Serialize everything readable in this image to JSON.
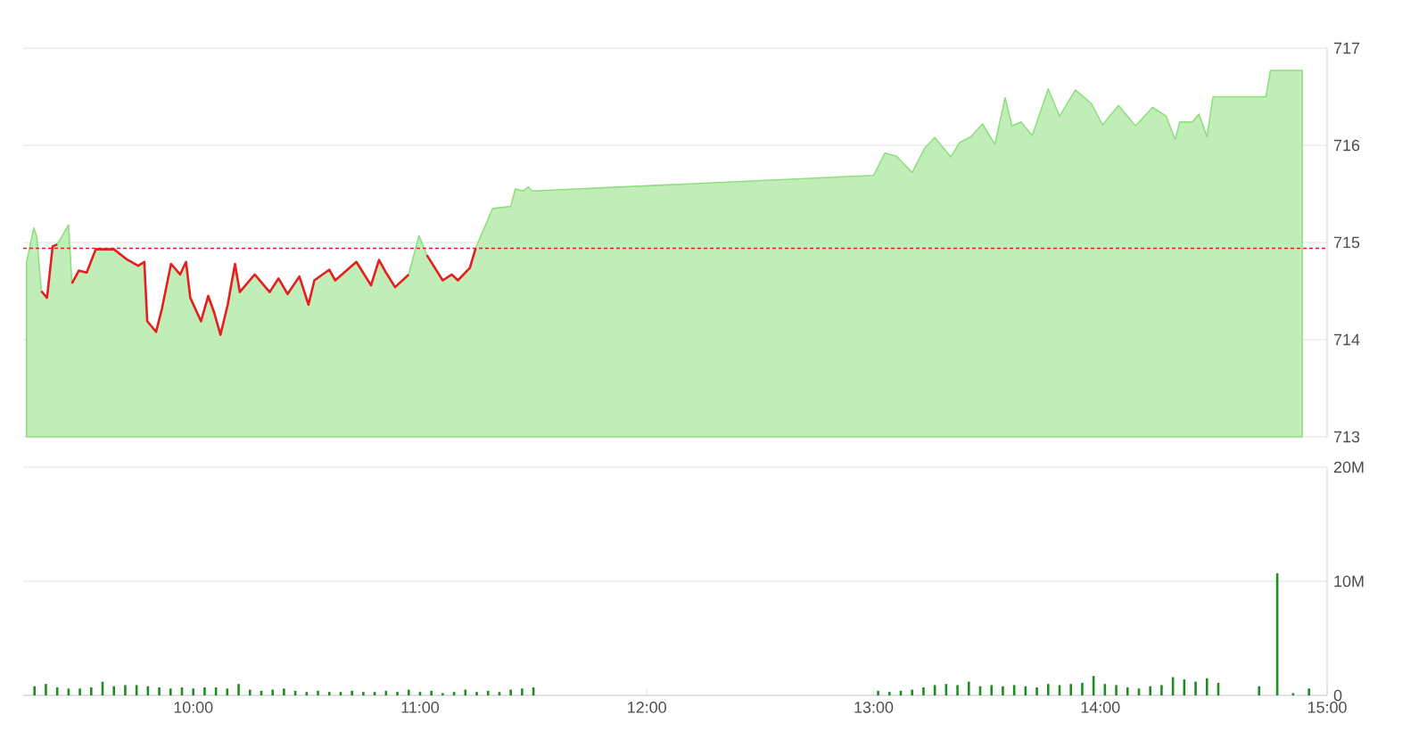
{
  "chart_data": [
    {
      "type": "area",
      "xlim": [
        9.25,
        15.0
      ],
      "ylim": [
        713,
        717
      ],
      "yticks": [
        713,
        714,
        715,
        716,
        717
      ],
      "grid": "y",
      "tick_labels": "y",
      "ref_lines": [
        {
          "axis": "y",
          "value": 714.94,
          "color": "#e02020",
          "line_style": "dashed"
        }
      ],
      "series": [
        {
          "type": "area",
          "color": "#8ee07e",
          "x": [
            9.265,
            9.297,
            9.31,
            9.33,
            9.355,
            9.38,
            9.4,
            9.45,
            9.465,
            9.495,
            9.53,
            9.57,
            9.65,
            9.705,
            9.757,
            9.784,
            9.797,
            9.836,
            9.862,
            9.902,
            9.942,
            9.968,
            9.987,
            10.034,
            10.066,
            10.092,
            10.12,
            10.152,
            10.184,
            10.205,
            10.271,
            10.337,
            10.376,
            10.416,
            10.468,
            10.508,
            10.534,
            10.6,
            10.626,
            10.719,
            10.784,
            10.819,
            10.85,
            10.89,
            10.95,
            10.995,
            11.03,
            11.1,
            11.14,
            11.167,
            11.22,
            11.245,
            11.32,
            11.4,
            11.42,
            11.455,
            11.477,
            11.495,
            13.0,
            13.05,
            13.1,
            13.17,
            13.225,
            13.27,
            13.34,
            13.38,
            13.43,
            13.48,
            13.535,
            13.58,
            13.61,
            13.65,
            13.7,
            13.77,
            13.82,
            13.89,
            13.96,
            14.01,
            14.08,
            14.155,
            14.23,
            14.29,
            14.33,
            14.35,
            14.405,
            14.435,
            14.47,
            14.497,
            14.73,
            14.75,
            14.89
          ],
          "values": [
            714.8,
            715.15,
            715.06,
            714.5,
            714.43,
            714.96,
            714.98,
            715.18,
            714.58,
            714.71,
            714.69,
            714.93,
            714.93,
            714.83,
            714.76,
            714.8,
            714.19,
            714.08,
            714.32,
            714.78,
            714.67,
            714.8,
            714.43,
            714.19,
            714.45,
            714.28,
            714.05,
            714.36,
            714.78,
            714.49,
            714.67,
            714.49,
            714.63,
            714.47,
            714.65,
            714.36,
            714.61,
            714.72,
            714.61,
            714.8,
            714.56,
            714.82,
            714.69,
            714.54,
            714.67,
            715.07,
            714.87,
            714.61,
            714.67,
            714.61,
            714.74,
            714.94,
            715.35,
            715.37,
            715.55,
            715.53,
            715.57,
            715.53,
            715.69,
            715.92,
            715.89,
            715.72,
            715.97,
            716.08,
            715.88,
            716.03,
            716.09,
            716.22,
            716.01,
            716.49,
            716.2,
            716.24,
            716.1,
            716.58,
            716.3,
            716.57,
            716.43,
            716.21,
            716.41,
            716.2,
            716.39,
            716.3,
            716.06,
            716.24,
            716.24,
            716.32,
            716.09,
            716.5,
            716.5,
            716.77,
            716.77
          ]
        },
        {
          "type": "line",
          "color": "#e61e1e",
          "x": [
            9.33,
            9.355,
            9.38,
            9.4,
            9.45,
            9.465,
            9.495,
            9.53,
            9.57,
            9.65,
            9.705,
            9.757,
            9.784,
            9.797,
            9.836,
            9.862,
            9.902,
            9.942,
            9.968,
            9.987,
            10.034,
            10.066,
            10.092,
            10.12,
            10.152,
            10.184,
            10.205,
            10.271,
            10.337,
            10.376,
            10.416,
            10.468,
            10.508,
            10.534,
            10.6,
            10.626,
            10.719,
            10.784,
            10.819,
            10.85,
            10.89,
            10.95,
            10.995,
            11.03,
            11.1,
            11.14,
            11.167,
            11.22,
            11.245
          ],
          "values": [
            714.5,
            714.43,
            714.96,
            714.98,
            null,
            714.58,
            714.71,
            714.69,
            714.93,
            714.93,
            714.83,
            714.76,
            714.8,
            714.19,
            714.08,
            714.32,
            714.78,
            714.67,
            714.8,
            714.43,
            714.19,
            714.45,
            714.28,
            714.05,
            714.36,
            714.78,
            714.49,
            714.67,
            714.49,
            714.63,
            714.47,
            714.65,
            714.36,
            714.61,
            714.72,
            714.61,
            714.8,
            714.56,
            714.82,
            714.69,
            714.54,
            714.67,
            null,
            714.87,
            714.61,
            714.67,
            714.61,
            714.74,
            714.94
          ]
        }
      ]
    },
    {
      "type": "bar",
      "color": "#1e8c1e",
      "xlim": [
        9.25,
        15.0
      ],
      "ylim": [
        0,
        20
      ],
      "grid": "y",
      "xticks": [
        {
          "value": 10,
          "label": "10:00"
        },
        {
          "value": 11,
          "label": "11:00"
        },
        {
          "value": 12,
          "label": "12:00"
        },
        {
          "value": 13,
          "label": "13:00"
        },
        {
          "value": 14,
          "label": "14:00"
        },
        {
          "value": 15,
          "label": "15:00"
        }
      ],
      "yticks": [
        0,
        {
          "value": 10,
          "label": "10M"
        },
        {
          "value": 20,
          "label": "20M"
        }
      ],
      "x": [
        9.3,
        9.35,
        9.4,
        9.45,
        9.5,
        9.55,
        9.6,
        9.65,
        9.7,
        9.75,
        9.8,
        9.85,
        9.9,
        9.95,
        10.0,
        10.05,
        10.1,
        10.15,
        10.2,
        10.25,
        10.3,
        10.35,
        10.4,
        10.45,
        10.5,
        10.55,
        10.6,
        10.65,
        10.7,
        10.75,
        10.8,
        10.85,
        10.9,
        10.95,
        11.0,
        11.05,
        11.1,
        11.15,
        11.2,
        11.25,
        11.3,
        11.35,
        11.4,
        11.45,
        11.5,
        13.02,
        13.07,
        13.12,
        13.17,
        13.22,
        13.27,
        13.32,
        13.37,
        13.42,
        13.47,
        13.52,
        13.57,
        13.62,
        13.67,
        13.72,
        13.77,
        13.82,
        13.87,
        13.92,
        13.97,
        14.02,
        14.07,
        14.12,
        14.17,
        14.22,
        14.27,
        14.32,
        14.37,
        14.42,
        14.47,
        14.52,
        14.7,
        14.78,
        14.85,
        14.92
      ],
      "values": [
        0.8,
        1.0,
        0.7,
        0.6,
        0.6,
        0.7,
        1.2,
        0.8,
        0.9,
        0.9,
        0.8,
        0.7,
        0.6,
        0.7,
        0.6,
        0.7,
        0.7,
        0.6,
        1.0,
        0.5,
        0.4,
        0.5,
        0.6,
        0.4,
        0.3,
        0.4,
        0.3,
        0.3,
        0.4,
        0.3,
        0.3,
        0.4,
        0.3,
        0.5,
        0.3,
        0.4,
        0.2,
        0.3,
        0.5,
        0.3,
        0.4,
        0.3,
        0.5,
        0.6,
        0.7,
        0.4,
        0.3,
        0.4,
        0.5,
        0.7,
        0.9,
        1.0,
        0.9,
        1.2,
        0.8,
        0.9,
        0.8,
        0.9,
        0.8,
        0.7,
        1.0,
        0.9,
        1.0,
        1.1,
        1.7,
        1.0,
        0.9,
        0.7,
        0.6,
        0.8,
        0.9,
        1.6,
        1.4,
        1.2,
        1.5,
        1.1,
        0.8,
        10.7,
        0.2,
        0.6
      ]
    }
  ]
}
